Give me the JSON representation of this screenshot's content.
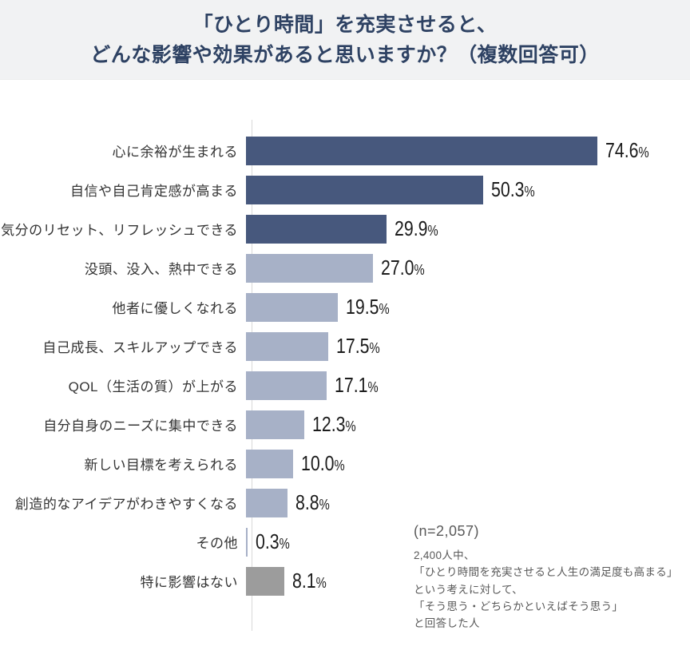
{
  "header": {
    "title_lines": [
      "「ひとり時間」を充実させると、",
      "どんな影響や効果があると思いますか？（複数回答可）"
    ]
  },
  "colors": {
    "dark": "#47587d",
    "light": "#a7b1c7",
    "gray": "#9c9c9c",
    "header_bg": "#f1f2f3",
    "title_text": "#2e4263",
    "axis": "#d8d8d8"
  },
  "chart_data": {
    "type": "bar",
    "orientation": "horizontal",
    "title": "「ひとり時間」を充実させると、どんな影響や効果があると思いますか？（複数回答可）",
    "xlim": [
      0,
      80
    ],
    "grid": false,
    "legend": false,
    "percent_suffix": "%",
    "categories": [
      "心に余裕が生まれる",
      "自信や自己肯定感が高まる",
      "気分のリセット、リフレッシュできる",
      "没頭、没入、熱中できる",
      "他者に優しくなれる",
      "自己成長、スキルアップできる",
      "QOL（生活の質）が上がる",
      "自分自身のニーズに集中できる",
      "新しい目標を考えられる",
      "創造的なアイデアがわきやすくなる",
      "その他",
      "特に影響はない"
    ],
    "values": [
      74.6,
      50.3,
      29.9,
      27.0,
      19.5,
      17.5,
      17.1,
      12.3,
      10.0,
      8.8,
      0.3,
      8.1
    ],
    "rows": [
      {
        "label": "心に余裕が生まれる",
        "value": 74.6,
        "value_label": "74.6",
        "color": "dark"
      },
      {
        "label": "自信や自己肯定感が高まる",
        "value": 50.3,
        "value_label": "50.3",
        "color": "dark"
      },
      {
        "label": "気分のリセット、リフレッシュできる",
        "value": 29.9,
        "value_label": "29.9",
        "color": "dark"
      },
      {
        "label": "没頭、没入、熱中できる",
        "value": 27.0,
        "value_label": "27.0",
        "color": "light"
      },
      {
        "label": "他者に優しくなれる",
        "value": 19.5,
        "value_label": "19.5",
        "color": "light"
      },
      {
        "label": "自己成長、スキルアップできる",
        "value": 17.5,
        "value_label": "17.5",
        "color": "light"
      },
      {
        "label": "QOL（生活の質）が上がる",
        "value": 17.1,
        "value_label": "17.1",
        "color": "light"
      },
      {
        "label": "自分自身のニーズに集中できる",
        "value": 12.3,
        "value_label": "12.3",
        "color": "light"
      },
      {
        "label": "新しい目標を考えられる",
        "value": 10.0,
        "value_label": "10.0",
        "color": "light"
      },
      {
        "label": "創造的なアイデアがわきやすくなる",
        "value": 8.8,
        "value_label": "8.8",
        "color": "light"
      },
      {
        "label": "その他",
        "value": 0.3,
        "value_label": "0.3",
        "color": "light"
      },
      {
        "label": "特に影響はない",
        "value": 8.1,
        "value_label": "8.1",
        "color": "gray"
      }
    ]
  },
  "note": {
    "n_label": "(n=2,057)",
    "lines": [
      "2,400人中、",
      "「ひとり時間を充実させると人生の満足度も高まる」",
      "という考えに対して、",
      "「そう思う・どちらかといえばそう思う」",
      "と回答した人"
    ]
  }
}
